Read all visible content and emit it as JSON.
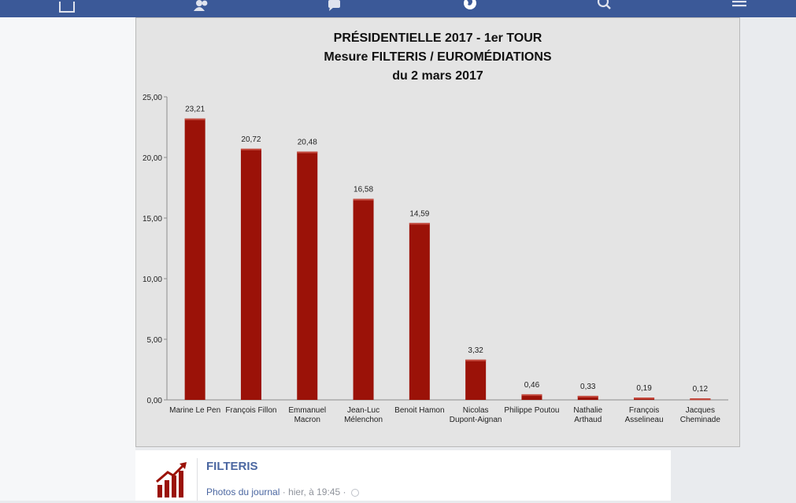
{
  "topbar": {
    "icons": [
      "home-icon",
      "friends-icon",
      "messages-icon",
      "globe-icon",
      "search-icon",
      "menu-icon"
    ],
    "color": "#3b5998"
  },
  "post": {
    "author": "FILTERIS",
    "source_link": "Photos du journal",
    "time": "hier, à 19:45",
    "separator": "·",
    "link_color": "#4b67a1"
  },
  "chart_data": {
    "type": "bar",
    "title_lines": [
      "PRÉSIDENTIELLE 2017 - 1er TOUR",
      "Mesure FILTERIS / EUROMÉDIATIONS",
      "du 2 mars 2017"
    ],
    "categories": [
      [
        "Marine Le Pen"
      ],
      [
        "François Fillon"
      ],
      [
        "Emmanuel",
        "Macron"
      ],
      [
        "Jean-Luc",
        "Mélenchon"
      ],
      [
        "Benoit Hamon"
      ],
      [
        "Nicolas",
        "Dupont-Aignan"
      ],
      [
        "Philippe Poutou"
      ],
      [
        "Nathalie",
        "Arthaud"
      ],
      [
        "François",
        "Asselineau"
      ],
      [
        "Jacques",
        "Cheminade"
      ]
    ],
    "values": [
      23.21,
      20.72,
      20.48,
      16.58,
      14.59,
      3.32,
      0.46,
      0.33,
      0.19,
      0.12
    ],
    "value_labels": [
      "23,21",
      "20,72",
      "20,48",
      "16,58",
      "14,59",
      "3,32",
      "0,46",
      "0,33",
      "0,19",
      "0,12"
    ],
    "y_ticks": [
      "0,00",
      "5,00",
      "10,00",
      "15,00",
      "20,00",
      "25,00"
    ],
    "y_tick_values": [
      0,
      5,
      10,
      15,
      20,
      25
    ],
    "ylim": [
      0,
      25
    ],
    "bar_color": "#9b1208",
    "grid": false
  }
}
